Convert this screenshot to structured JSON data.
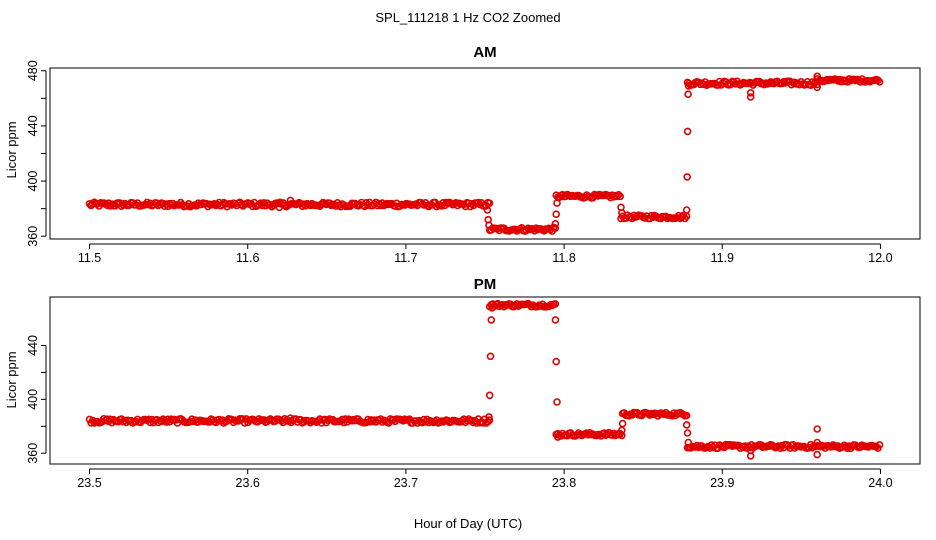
{
  "chart_data": {
    "type": "scatter",
    "title": "SPL_111218  1 Hz CO2 Zoomed",
    "xlabel": "Hour of Day (UTC)",
    "marker": "open-circle",
    "marker_color": "#e00000",
    "panels": [
      {
        "id": "am",
        "title": "AM",
        "ylabel": "Licor ppm",
        "xlim": [
          11.475,
          12.025
        ],
        "ylim": [
          358,
          482
        ],
        "x_ticks": [
          11.5,
          11.6,
          11.7,
          11.8,
          11.9,
          12.0
        ],
        "x_tick_labels": [
          "11.5",
          "11.6",
          "11.7",
          "11.8",
          "11.9",
          "12.0"
        ],
        "y_ticks": [
          360,
          380,
          400,
          420,
          440,
          460,
          480
        ],
        "y_tick_labels": [
          "360",
          "",
          "400",
          "",
          "440",
          "",
          "480"
        ],
        "segments": [
          {
            "x_start": 11.5,
            "x_end": 11.753,
            "y": 383,
            "noise": 1.6
          },
          {
            "x_start": 11.753,
            "x_end": 11.795,
            "y": 365,
            "noise": 1.4
          },
          {
            "x_start": 11.795,
            "x_end": 11.836,
            "y": 389,
            "noise": 1.3
          },
          {
            "x_start": 11.836,
            "x_end": 11.878,
            "y": 374,
            "noise": 1.3
          },
          {
            "x_start": 11.878,
            "x_end": 11.96,
            "y": 471,
            "noise": 1.5
          },
          {
            "x_start": 11.96,
            "x_end": 12.0,
            "y": 473,
            "noise": 1.2
          }
        ],
        "points": [
          {
            "x": 11.7515,
            "y": 379
          },
          {
            "x": 11.752,
            "y": 372
          },
          {
            "x": 11.7525,
            "y": 368
          },
          {
            "x": 11.7945,
            "y": 369
          },
          {
            "x": 11.795,
            "y": 376
          },
          {
            "x": 11.7955,
            "y": 384
          },
          {
            "x": 11.836,
            "y": 381
          },
          {
            "x": 11.8365,
            "y": 377
          },
          {
            "x": 11.8775,
            "y": 379
          },
          {
            "x": 11.8778,
            "y": 403
          },
          {
            "x": 11.8781,
            "y": 436
          },
          {
            "x": 11.8784,
            "y": 463
          },
          {
            "x": 11.8787,
            "y": 469
          },
          {
            "x": 11.918,
            "y": 464
          },
          {
            "x": 11.918,
            "y": 461
          },
          {
            "x": 11.96,
            "y": 468
          },
          {
            "x": 11.96,
            "y": 476
          },
          {
            "x": 11.627,
            "y": 386
          },
          {
            "x": 11.62,
            "y": 381
          }
        ]
      },
      {
        "id": "pm",
        "title": "PM",
        "ylabel": "Licor ppm",
        "xlim": [
          23.475,
          24.025
        ],
        "ylim": [
          352,
          476
        ],
        "x_ticks": [
          23.5,
          23.6,
          23.7,
          23.8,
          23.9,
          24.0
        ],
        "x_tick_labels": [
          "23.5",
          "23.6",
          "23.7",
          "23.8",
          "23.9",
          "24.0"
        ],
        "y_ticks": [
          360,
          380,
          400,
          420,
          440
        ],
        "y_tick_labels": [
          "360",
          "",
          "400",
          "",
          "440"
        ],
        "segments": [
          {
            "x_start": 23.5,
            "x_end": 23.753,
            "y": 384,
            "noise": 1.6
          },
          {
            "x_start": 23.753,
            "x_end": 23.795,
            "y": 470,
            "noise": 1.3
          },
          {
            "x_start": 23.795,
            "x_end": 23.837,
            "y": 374,
            "noise": 1.3
          },
          {
            "x_start": 23.837,
            "x_end": 23.878,
            "y": 389,
            "noise": 1.3
          },
          {
            "x_start": 23.878,
            "x_end": 24.0,
            "y": 365,
            "noise": 1.4
          }
        ],
        "points": [
          {
            "x": 23.7525,
            "y": 387
          },
          {
            "x": 23.753,
            "y": 403
          },
          {
            "x": 23.7535,
            "y": 432
          },
          {
            "x": 23.754,
            "y": 459
          },
          {
            "x": 23.7545,
            "y": 468
          },
          {
            "x": 23.7945,
            "y": 459
          },
          {
            "x": 23.795,
            "y": 428
          },
          {
            "x": 23.7955,
            "y": 398
          },
          {
            "x": 23.796,
            "y": 372
          },
          {
            "x": 23.8365,
            "y": 377
          },
          {
            "x": 23.837,
            "y": 382
          },
          {
            "x": 23.8775,
            "y": 381
          },
          {
            "x": 23.878,
            "y": 375
          },
          {
            "x": 23.8785,
            "y": 368
          },
          {
            "x": 23.918,
            "y": 358
          },
          {
            "x": 23.918,
            "y": 362
          },
          {
            "x": 23.96,
            "y": 359
          },
          {
            "x": 23.96,
            "y": 378
          },
          {
            "x": 23.96,
            "y": 368
          },
          {
            "x": 23.627,
            "y": 386
          }
        ]
      }
    ]
  }
}
